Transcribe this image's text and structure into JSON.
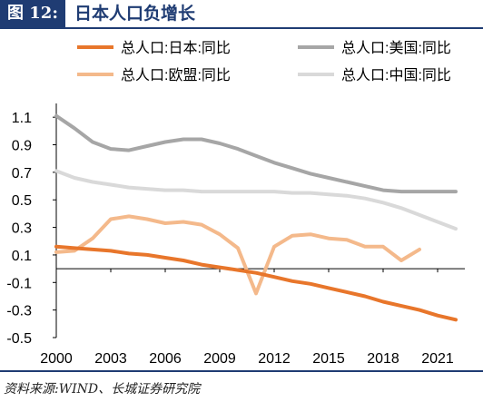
{
  "figure": {
    "label": "图 12:",
    "title": "日本人口负增长"
  },
  "source": "资料来源:WIND、长城证券研究院",
  "colors": {
    "accent": "#1f3c73"
  },
  "chart_data": {
    "type": "line",
    "x_ticks": [
      2000,
      2003,
      2006,
      2009,
      2012,
      2015,
      2018,
      2021
    ],
    "y_ticks": [
      "1.1",
      "0.9",
      "0.7",
      "0.5",
      "0.3",
      "0.1",
      "-0.1",
      "-0.3",
      "-0.5"
    ],
    "xlim": [
      2000,
      2022.5
    ],
    "ylim": [
      -0.5,
      1.2
    ],
    "legend_position": "top",
    "series": [
      {
        "name": "总人口:日本:同比",
        "color": "#e8762b",
        "x": [
          2000,
          2001,
          2002,
          2003,
          2004,
          2005,
          2006,
          2007,
          2008,
          2009,
          2010,
          2011,
          2012,
          2013,
          2014,
          2015,
          2016,
          2017,
          2018,
          2019,
          2020,
          2021,
          2022
        ],
        "y": [
          0.16,
          0.15,
          0.14,
          0.13,
          0.11,
          0.1,
          0.08,
          0.06,
          0.03,
          0.01,
          -0.01,
          -0.03,
          -0.06,
          -0.09,
          -0.11,
          -0.14,
          -0.17,
          -0.2,
          -0.24,
          -0.27,
          -0.3,
          -0.34,
          -0.37
        ]
      },
      {
        "name": "总人口:美国:同比",
        "color": "#a6a6a6",
        "x": [
          2000,
          2001,
          2002,
          2003,
          2004,
          2005,
          2006,
          2007,
          2008,
          2009,
          2010,
          2011,
          2012,
          2013,
          2014,
          2015,
          2016,
          2017,
          2018,
          2019,
          2020,
          2021,
          2022
        ],
        "y": [
          1.11,
          1.02,
          0.92,
          0.87,
          0.86,
          0.89,
          0.92,
          0.94,
          0.94,
          0.91,
          0.87,
          0.82,
          0.77,
          0.73,
          0.69,
          0.66,
          0.63,
          0.6,
          0.57,
          0.56,
          0.56,
          0.56,
          0.56
        ]
      },
      {
        "name": "总人口:欧盟:同比",
        "color": "#f4b98b",
        "x": [
          2000,
          2001,
          2002,
          2003,
          2004,
          2005,
          2006,
          2007,
          2008,
          2009,
          2010,
          2011,
          2012,
          2013,
          2014,
          2015,
          2016,
          2017,
          2018,
          2019,
          2020
        ],
        "y": [
          0.12,
          0.13,
          0.22,
          0.36,
          0.38,
          0.36,
          0.33,
          0.34,
          0.32,
          0.25,
          0.15,
          -0.18,
          0.16,
          0.24,
          0.25,
          0.22,
          0.21,
          0.16,
          0.16,
          0.06,
          0.14
        ]
      },
      {
        "name": "总人口:中国:同比",
        "color": "#d9d9d9",
        "x": [
          2000,
          2001,
          2002,
          2003,
          2004,
          2005,
          2006,
          2007,
          2008,
          2009,
          2010,
          2011,
          2012,
          2013,
          2014,
          2015,
          2016,
          2017,
          2018,
          2019,
          2020,
          2021,
          2022
        ],
        "y": [
          0.71,
          0.66,
          0.63,
          0.61,
          0.59,
          0.58,
          0.57,
          0.57,
          0.56,
          0.56,
          0.56,
          0.56,
          0.56,
          0.55,
          0.55,
          0.54,
          0.53,
          0.51,
          0.48,
          0.44,
          0.39,
          0.34,
          0.29
        ]
      }
    ]
  }
}
